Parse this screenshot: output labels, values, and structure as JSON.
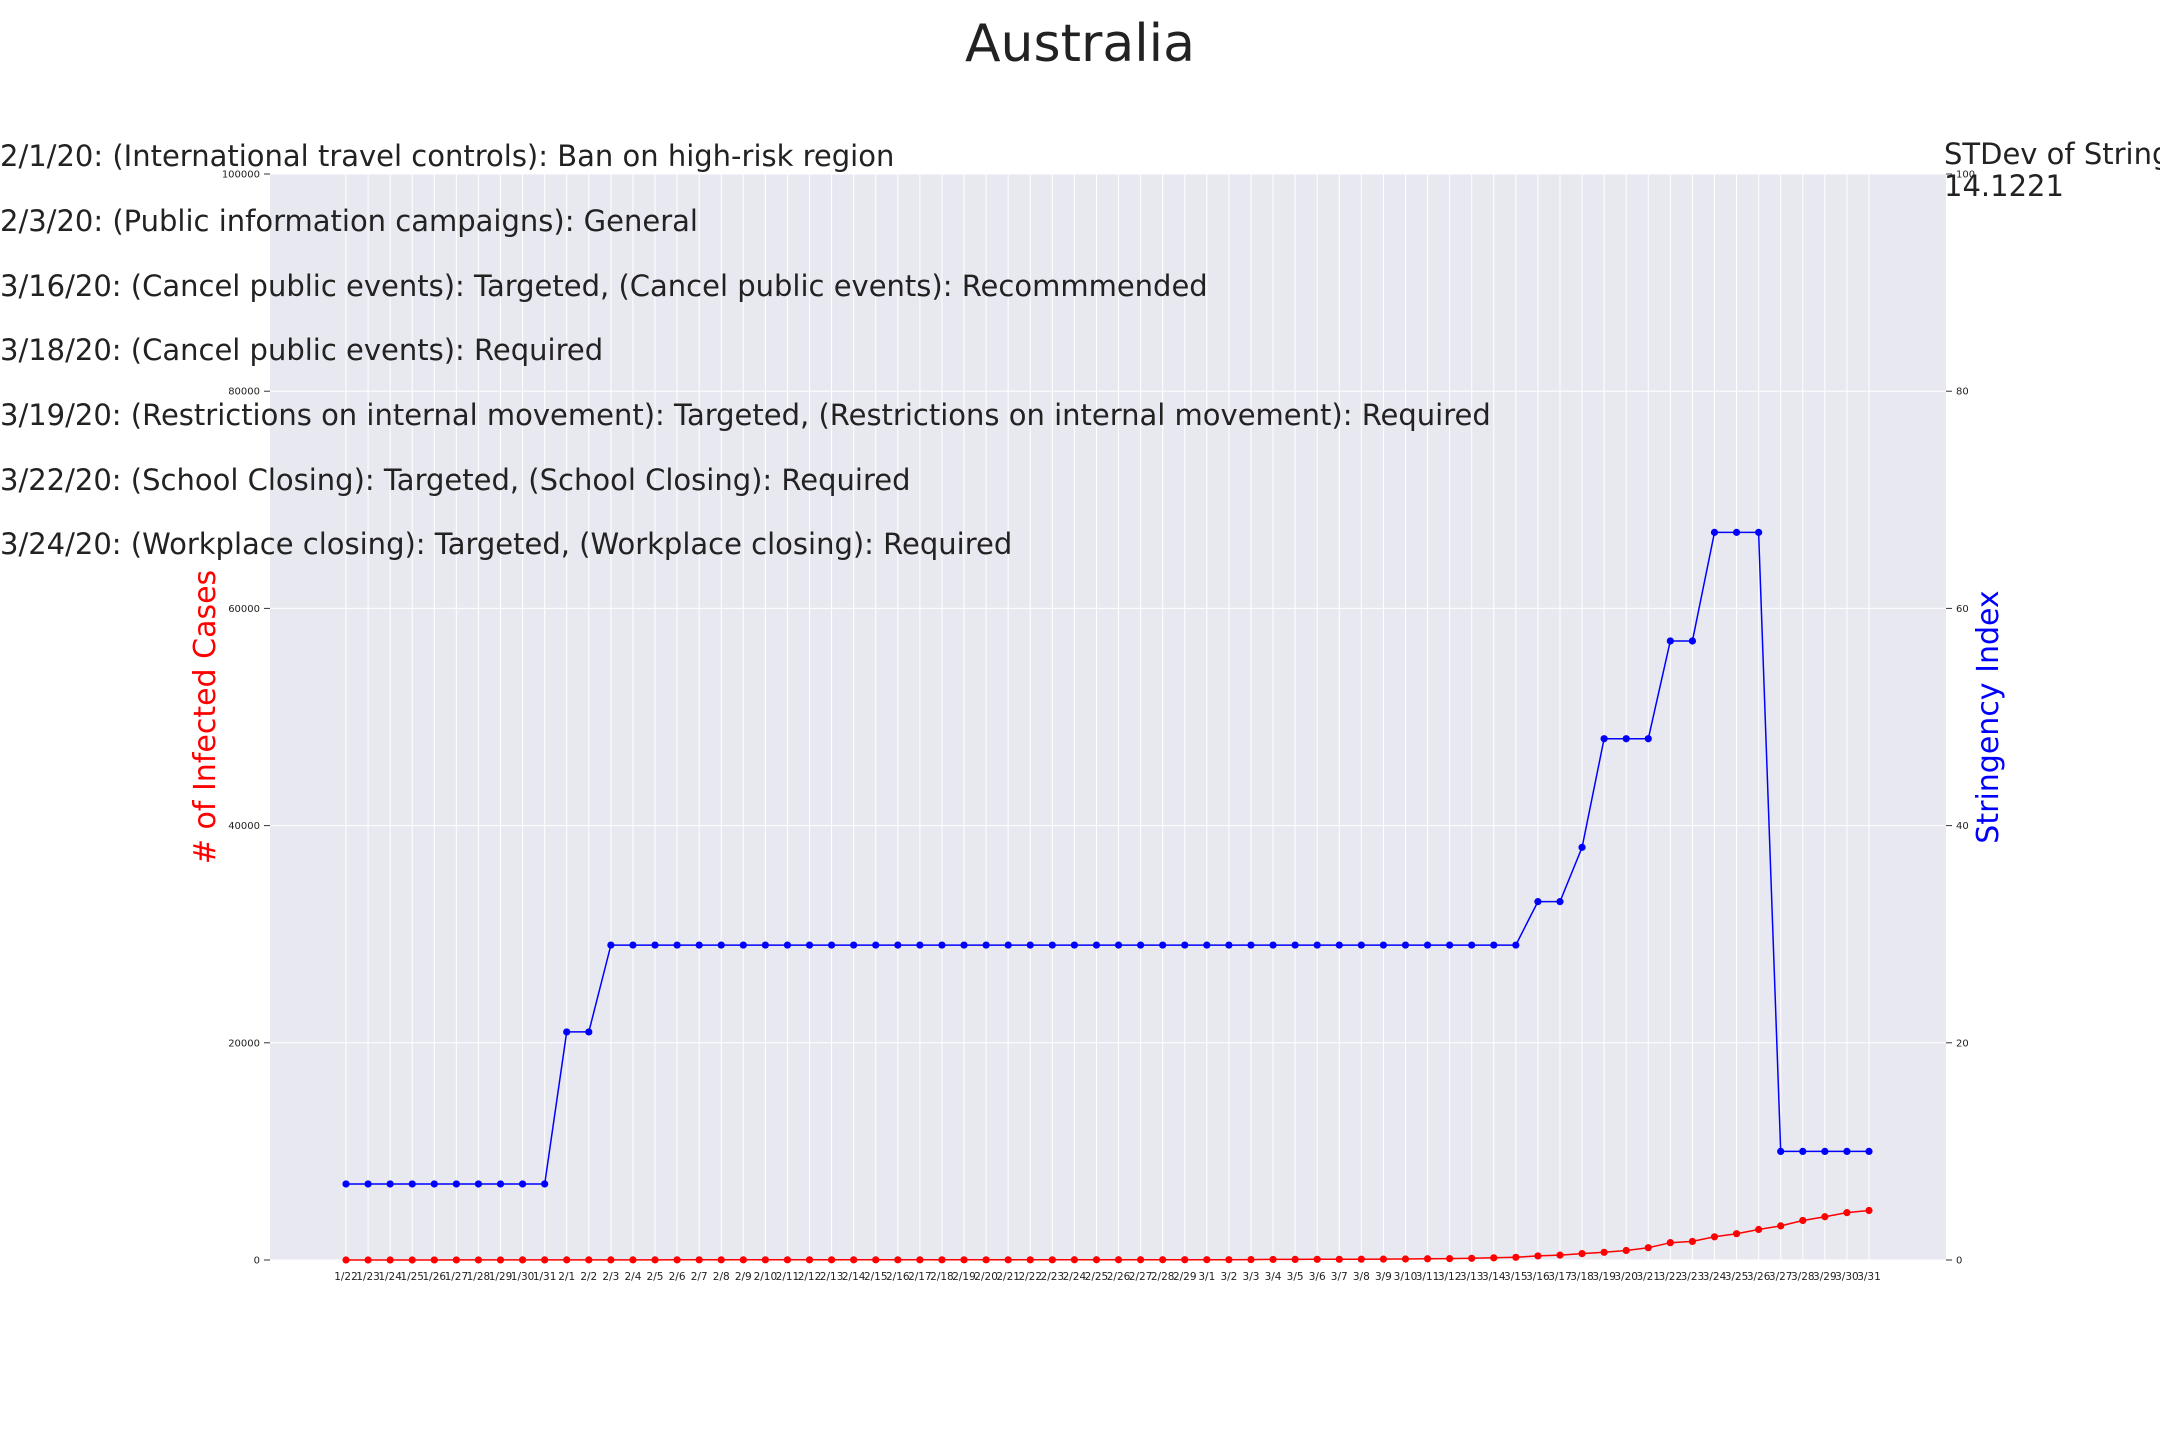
{
  "chart_data": {
    "type": "line",
    "title": "Australia",
    "xlabel": "",
    "ylabel_left": "# of Infected Cases",
    "ylabel_right": "Stringency Index",
    "ylim_left": [
      0,
      100000
    ],
    "ylim_right": [
      0,
      100
    ],
    "yticks_left": [
      "0",
      "20000",
      "40000",
      "60000",
      "80000",
      "100000"
    ],
    "yticks_right": [
      "0",
      "20",
      "40",
      "60",
      "80",
      "100"
    ],
    "grid": true,
    "categories": [
      "1/22",
      "1/23",
      "1/24",
      "1/25",
      "1/26",
      "1/27",
      "1/28",
      "1/29",
      "1/30",
      "1/31",
      "2/1",
      "2/2",
      "2/3",
      "2/4",
      "2/5",
      "2/6",
      "2/7",
      "2/8",
      "2/9",
      "2/10",
      "2/11",
      "2/12",
      "2/13",
      "2/14",
      "2/15",
      "2/16",
      "2/17",
      "2/18",
      "2/19",
      "2/20",
      "2/21",
      "2/22",
      "2/23",
      "2/24",
      "2/25",
      "2/26",
      "2/27",
      "2/28",
      "2/29",
      "3/1",
      "3/2",
      "3/3",
      "3/4",
      "3/5",
      "3/6",
      "3/7",
      "3/8",
      "3/9",
      "3/10",
      "3/11",
      "3/12",
      "3/13",
      "3/14",
      "3/15",
      "3/16",
      "3/17",
      "3/18",
      "3/19",
      "3/20",
      "3/21",
      "3/22",
      "3/23",
      "3/24",
      "3/25",
      "3/26",
      "3/27",
      "3/28",
      "3/29",
      "3/30",
      "3/31"
    ],
    "series": [
      {
        "name": "# of Infected Cases",
        "axis": "left",
        "color": "#ff0000",
        "values": [
          0,
          0,
          0,
          0,
          4,
          5,
          5,
          6,
          9,
          9,
          12,
          12,
          12,
          13,
          13,
          14,
          15,
          15,
          15,
          15,
          15,
          15,
          15,
          15,
          15,
          15,
          15,
          15,
          15,
          15,
          15,
          15,
          15,
          22,
          22,
          22,
          23,
          23,
          25,
          27,
          30,
          39,
          52,
          55,
          60,
          63,
          76,
          80,
          92,
          112,
          127,
          156,
          198,
          248,
          376,
          448,
          590,
          710,
          875,
          1135,
          1597,
          1709,
          2136,
          2423,
          2810,
          3143,
          3640,
          3984,
          4361,
          4559
        ]
      },
      {
        "name": "Stringency Index",
        "axis": "right",
        "color": "#0000ff",
        "values": [
          7,
          7,
          7,
          7,
          7,
          7,
          7,
          7,
          7,
          7,
          21,
          21,
          29,
          29,
          29,
          29,
          29,
          29,
          29,
          29,
          29,
          29,
          29,
          29,
          29,
          29,
          29,
          29,
          29,
          29,
          29,
          29,
          29,
          29,
          29,
          29,
          29,
          29,
          29,
          29,
          29,
          29,
          29,
          29,
          29,
          29,
          29,
          29,
          29,
          29,
          29,
          29,
          29,
          29,
          33,
          33,
          38,
          48,
          48,
          48,
          57,
          57,
          67,
          67,
          67,
          10,
          10,
          10,
          10,
          10
        ]
      }
    ],
    "annotations": [
      "2/1/20: (International travel controls): Ban on high-risk region",
      "2/3/20: (Public information campaigns): General",
      "3/16/20: (Cancel public events): Targeted, (Cancel public events): Recommmended",
      "3/18/20: (Cancel public events): Required",
      "3/19/20: (Restrictions on internal movement): Targeted, (Restrictions on internal movement): Required",
      "3/22/20: (School Closing): Targeted, (School Closing): Required",
      "3/24/20: (Workplace closing): Targeted, (Workplace closing): Required"
    ],
    "stdev_label": "STDev of Stringe",
    "stdev_value": "14.1221"
  }
}
